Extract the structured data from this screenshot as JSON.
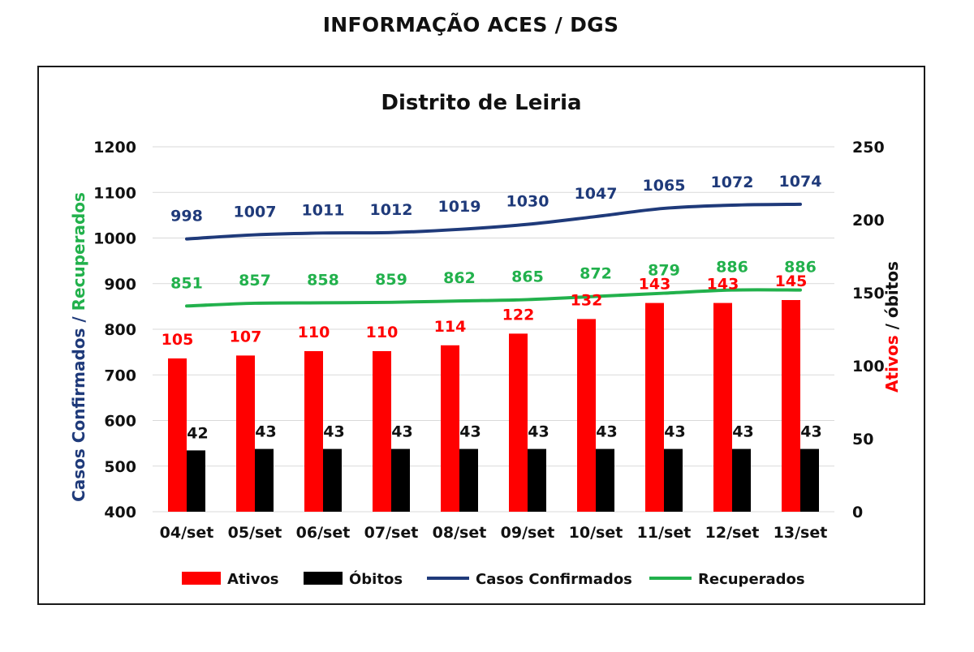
{
  "page_title": "INFORMAÇÃO ACES / DGS",
  "colors": {
    "ativos": "#ff0000",
    "obitos": "#000000",
    "casos": "#1f3a7a",
    "recuperados": "#22b14c",
    "recuperados_label": "#22b14c",
    "grid": "#d9d9d9"
  },
  "chart_data": {
    "type": "bar",
    "title": "Distrito de Leiria",
    "categories": [
      "04/set",
      "05/set",
      "06/set",
      "07/set",
      "08/set",
      "09/set",
      "10/set",
      "11/set",
      "12/set",
      "13/set"
    ],
    "y_left": {
      "label_part1": "Casos Confirmados",
      "label_sep": " / ",
      "label_part2": "Recuperados",
      "range": [
        400,
        1200
      ],
      "ticks": [
        400,
        500,
        600,
        700,
        800,
        900,
        1000,
        1100,
        1200
      ]
    },
    "y_right": {
      "label_part1": "Ativos",
      "label_sep": " / ",
      "label_part2": "óbitos",
      "range": [
        0,
        250
      ],
      "ticks": [
        0,
        50,
        100,
        150,
        200,
        250
      ]
    },
    "grid": true,
    "legend_position": "bottom",
    "series": [
      {
        "name": "Ativos",
        "kind": "bar",
        "axis": "right",
        "color": "#ff0000",
        "values": [
          105,
          107,
          110,
          110,
          114,
          122,
          132,
          143,
          143,
          145
        ]
      },
      {
        "name": "Óbitos",
        "kind": "bar",
        "axis": "right",
        "color": "#000000",
        "values": [
          42,
          43,
          43,
          43,
          43,
          43,
          43,
          43,
          43,
          43
        ]
      },
      {
        "name": "Casos Confirmados",
        "kind": "line",
        "axis": "left",
        "color": "#1f3a7a",
        "values": [
          998,
          1007,
          1011,
          1012,
          1019,
          1030,
          1047,
          1065,
          1072,
          1074
        ]
      },
      {
        "name": "Recuperados",
        "kind": "line",
        "axis": "left",
        "color": "#22b14c",
        "values": [
          851,
          857,
          858,
          859,
          862,
          865,
          872,
          879,
          886,
          886
        ]
      }
    ]
  }
}
